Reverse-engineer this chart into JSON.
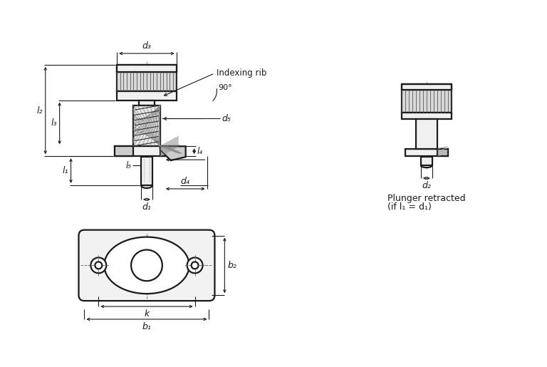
{
  "bg_color": "#ffffff",
  "line_color": "#1a1a1a",
  "dim_color": "#1a1a1a",
  "light_fill": "#f0f0f0",
  "mid_fill": "#d8d8d8",
  "dark_fill": "#b0b0b0",
  "knurl_fill": "#e8e8e8",
  "dim_labels": {
    "d1": "d₁",
    "d2": "d₂",
    "d3": "d₃",
    "d4": "d₄",
    "d5": "d₅",
    "l1": "l₁",
    "l2": "l₂",
    "l3": "l₃",
    "l4": "l₄",
    "l5": "l₅",
    "k": "k",
    "b1": "b₁",
    "b2": "b₂"
  },
  "annotation_indexing_rib": "Indexing rib",
  "annotation_90deg": "90°",
  "retracted_line1": "Plunger retracted",
  "retracted_line2": "(if l₁ = d₁)"
}
